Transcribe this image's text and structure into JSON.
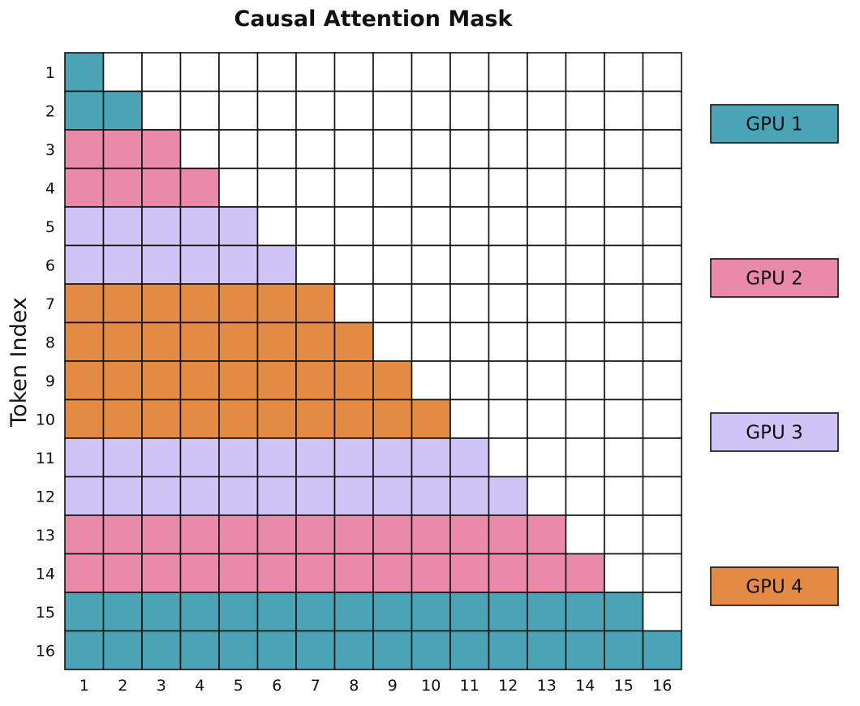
{
  "chart_data": {
    "type": "heatmap",
    "title": "Causal Attention Mask",
    "ylabel": "Token Index",
    "xlabel": "",
    "x_ticks": [
      "1",
      "2",
      "3",
      "4",
      "5",
      "6",
      "7",
      "8",
      "9",
      "10",
      "11",
      "12",
      "13",
      "14",
      "15",
      "16"
    ],
    "y_ticks": [
      "1",
      "2",
      "3",
      "4",
      "5",
      "6",
      "7",
      "8",
      "9",
      "10",
      "11",
      "12",
      "13",
      "14",
      "15",
      "16"
    ],
    "mask": "lower-triangular (row i attends to columns 1..i)",
    "row_assignment": [
      {
        "token": 1,
        "gpu": "GPU 1"
      },
      {
        "token": 2,
        "gpu": "GPU 1"
      },
      {
        "token": 3,
        "gpu": "GPU 2"
      },
      {
        "token": 4,
        "gpu": "GPU 2"
      },
      {
        "token": 5,
        "gpu": "GPU 3"
      },
      {
        "token": 6,
        "gpu": "GPU 3"
      },
      {
        "token": 7,
        "gpu": "GPU 4"
      },
      {
        "token": 8,
        "gpu": "GPU 4"
      },
      {
        "token": 9,
        "gpu": "GPU 4"
      },
      {
        "token": 10,
        "gpu": "GPU 4"
      },
      {
        "token": 11,
        "gpu": "GPU 3"
      },
      {
        "token": 12,
        "gpu": "GPU 3"
      },
      {
        "token": 13,
        "gpu": "GPU 2"
      },
      {
        "token": 14,
        "gpu": "GPU 2"
      },
      {
        "token": 15,
        "gpu": "GPU 1"
      },
      {
        "token": 16,
        "gpu": "GPU 1"
      }
    ],
    "legend": [
      {
        "label": "GPU 1",
        "color": "#4ba3b6"
      },
      {
        "label": "GPU 2",
        "color": "#e98aaa"
      },
      {
        "label": "GPU 3",
        "color": "#d0c4f7"
      },
      {
        "label": "GPU 4",
        "color": "#e38b45"
      }
    ],
    "empty_color": "#ffffff",
    "grid": true,
    "legend_placement": "right"
  }
}
